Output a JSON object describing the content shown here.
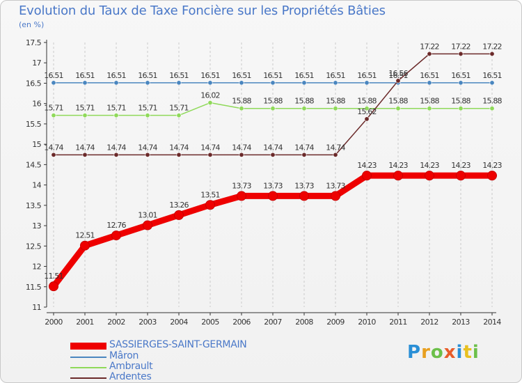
{
  "title": "Evolution du Taux de Taxe Foncière sur les Propriétés Bâties",
  "subtitle": "(en %)",
  "logo": {
    "text": "Proxiti",
    "letter_colors": [
      "#2a8fd6",
      "#e8a020",
      "#6cc04a",
      "#e85d2a",
      "#2a8fd6",
      "#e8c020",
      "#6cc04a"
    ]
  },
  "chart_data": {
    "type": "line",
    "title": "Evolution du Taux de Taxe Foncière sur les Propriétés Bâties",
    "ylabel": "(en %)",
    "xlabel": "",
    "ylim": [
      11,
      17.5
    ],
    "y_ticks": [
      "11",
      "11.5",
      "12",
      "12.5",
      "13",
      "13.5",
      "14",
      "14.5",
      "15",
      "15.5",
      "16",
      "16.5",
      "17",
      "17.5"
    ],
    "x": [
      "2000",
      "2001",
      "2002",
      "2003",
      "2004",
      "2005",
      "2006",
      "2007",
      "2008",
      "2009",
      "2010",
      "2011",
      "2012",
      "2013",
      "2014"
    ],
    "grid": "vertical dashed",
    "legend_position": "bottom-left",
    "series": [
      {
        "name": "Mâron",
        "color": "#4a86bf",
        "values": [
          16.51,
          16.51,
          16.51,
          16.51,
          16.51,
          16.51,
          16.51,
          16.51,
          16.51,
          16.51,
          16.51,
          16.51,
          16.51,
          16.51,
          16.51
        ],
        "labels": [
          "16.51",
          "16.51",
          "16.51",
          "16.51",
          "16.51",
          "16.51",
          "16.51",
          "16.51",
          "16.51",
          "16.51",
          "16.51",
          "16.51",
          "16.51",
          "16.51",
          "16.51"
        ]
      },
      {
        "name": "Ambrault",
        "color": "#8fd95a",
        "values": [
          15.71,
          15.71,
          15.71,
          15.71,
          15.71,
          16.02,
          15.88,
          15.88,
          15.88,
          15.88,
          15.88,
          15.88,
          15.88,
          15.88,
          15.88
        ],
        "labels": [
          "15.71",
          "15.71",
          "15.71",
          "15.71",
          "15.71",
          "16.02",
          "15.88",
          "15.88",
          "15.88",
          "15.88",
          "15.88",
          "15.88",
          "15.88",
          "15.88",
          "15.88"
        ]
      },
      {
        "name": "Ardentes",
        "color": "#6b2a2a",
        "values": [
          14.74,
          14.74,
          14.74,
          14.74,
          14.74,
          14.74,
          14.74,
          14.74,
          14.74,
          14.74,
          15.62,
          16.56,
          17.22,
          17.22,
          17.22
        ],
        "labels": [
          "14.74",
          "14.74",
          "14.74",
          "14.74",
          "14.74",
          "14.74",
          "14.74",
          "14.74",
          "14.74",
          "14.74",
          "15.62",
          "16.56",
          "17.22",
          "17.22",
          "17.22"
        ]
      },
      {
        "name": "SASSIERGES-SAINT-GERMAIN",
        "color": "#ee0000",
        "values": [
          11.51,
          12.51,
          12.76,
          13.01,
          13.26,
          13.51,
          13.73,
          13.73,
          13.73,
          13.73,
          14.23,
          14.23,
          14.23,
          14.23,
          14.23
        ],
        "labels": [
          "11.51",
          "12.51",
          "12.76",
          "13.01",
          "13.26",
          "13.51",
          "13.73",
          "13.73",
          "13.73",
          "13.73",
          "14.23",
          "14.23",
          "14.23",
          "14.23",
          "14.23"
        ]
      }
    ],
    "legend": [
      "SASSIERGES-SAINT-GERMAIN",
      "Mâron",
      "Ambrault",
      "Ardentes"
    ]
  }
}
